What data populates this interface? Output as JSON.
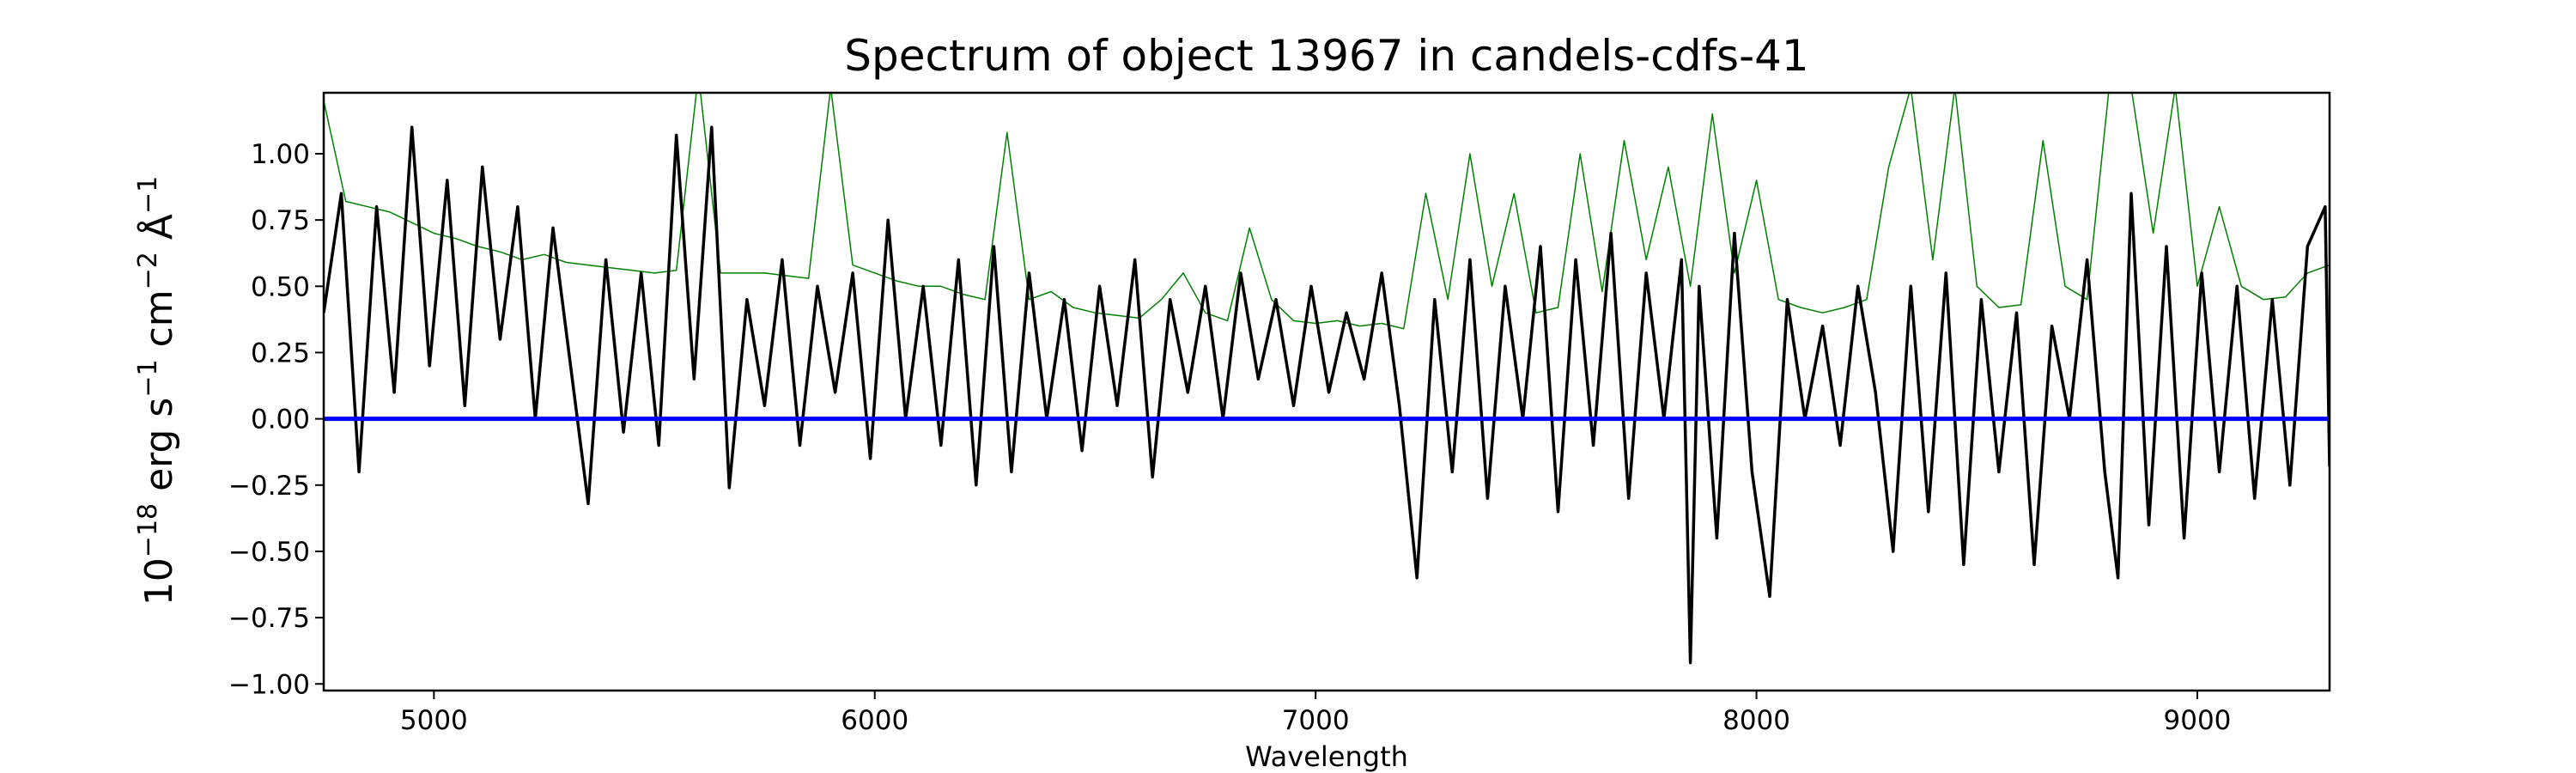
{
  "chart_data": {
    "type": "line",
    "title": "Spectrum of object 13967 in candels-cdfs-41",
    "xlabel": "Wavelength",
    "ylabel": {
      "base": "10",
      "exp1": "−18",
      "t1": " erg s",
      "exp2": "−1",
      "t2": " cm",
      "exp3": "−2",
      "t3": " Å",
      "exp4": "−1"
    },
    "xlim": [
      4750,
      9300
    ],
    "ylim": [
      -1.025,
      1.23
    ],
    "grid": false,
    "xticks": [
      "5000",
      "6000",
      "7000",
      "8000",
      "9000"
    ],
    "xtick_values": [
      5000,
      6000,
      7000,
      8000,
      9000
    ],
    "yticks": [
      "−1.00",
      "−0.75",
      "−0.50",
      "−0.25",
      "0.00",
      "0.25",
      "0.50",
      "0.75",
      "1.00"
    ],
    "ytick_values": [
      -1.0,
      -0.75,
      -0.5,
      -0.25,
      0.0,
      0.25,
      0.5,
      0.75,
      1.0
    ],
    "colors": {
      "flux": "#000000",
      "model": "#008000",
      "zero": "#0000ff"
    },
    "series": [
      {
        "role": "flux",
        "x": [
          4750,
          4790,
          4830,
          4870,
          4910,
          4950,
          4990,
          5030,
          5070,
          5110,
          5150,
          5190,
          5230,
          5270,
          5310,
          5350,
          5390,
          5430,
          5470,
          5510,
          5550,
          5590,
          5630,
          5670,
          5710,
          5750,
          5790,
          5830,
          5870,
          5910,
          5950,
          5990,
          6030,
          6070,
          6110,
          6150,
          6190,
          6230,
          6270,
          6310,
          6350,
          6390,
          6430,
          6470,
          6510,
          6550,
          6590,
          6630,
          6670,
          6710,
          6750,
          6790,
          6830,
          6870,
          6910,
          6950,
          6990,
          7030,
          7070,
          7110,
          7150,
          7190,
          7230,
          7270,
          7310,
          7350,
          7390,
          7430,
          7470,
          7510,
          7550,
          7590,
          7630,
          7670,
          7710,
          7750,
          7790,
          7830,
          7850,
          7870,
          7910,
          7950,
          7990,
          8030,
          8070,
          8110,
          8150,
          8190,
          8230,
          8270,
          8310,
          8350,
          8390,
          8430,
          8470,
          8510,
          8550,
          8590,
          8630,
          8670,
          8710,
          8750,
          8790,
          8820,
          8850,
          8890,
          8930,
          8970,
          9010,
          9050,
          9090,
          9130,
          9170,
          9210,
          9250,
          9290,
          9300
        ],
        "y": [
          0.4,
          0.85,
          -0.2,
          0.8,
          0.1,
          1.1,
          0.2,
          0.9,
          0.05,
          0.95,
          0.3,
          0.8,
          0.0,
          0.72,
          0.2,
          -0.32,
          0.6,
          -0.05,
          0.55,
          -0.1,
          1.07,
          0.15,
          1.1,
          -0.26,
          0.45,
          0.05,
          0.6,
          -0.1,
          0.5,
          0.1,
          0.55,
          -0.15,
          0.75,
          0.0,
          0.5,
          -0.1,
          0.6,
          -0.25,
          0.65,
          -0.2,
          0.55,
          0.0,
          0.45,
          -0.12,
          0.5,
          0.05,
          0.6,
          -0.22,
          0.45,
          0.1,
          0.5,
          0.0,
          0.55,
          0.15,
          0.45,
          0.05,
          0.5,
          0.1,
          0.4,
          0.15,
          0.55,
          0.05,
          -0.6,
          0.45,
          -0.2,
          0.6,
          -0.3,
          0.5,
          0.0,
          0.65,
          -0.35,
          0.6,
          -0.1,
          0.7,
          -0.3,
          0.55,
          0.0,
          0.6,
          -0.92,
          0.5,
          -0.45,
          0.7,
          -0.2,
          -0.67,
          0.45,
          0.0,
          0.35,
          -0.1,
          0.5,
          0.1,
          -0.5,
          0.5,
          -0.35,
          0.55,
          -0.55,
          0.45,
          -0.2,
          0.4,
          -0.55,
          0.35,
          0.0,
          0.6,
          -0.2,
          -0.6,
          0.85,
          -0.4,
          0.65,
          -0.45,
          0.55,
          -0.2,
          0.5,
          -0.3,
          0.45,
          -0.25,
          0.65,
          0.8,
          -0.18
        ]
      },
      {
        "role": "model",
        "x": [
          4750,
          4800,
          4850,
          4900,
          4950,
          5000,
          5050,
          5100,
          5150,
          5200,
          5250,
          5300,
          5350,
          5400,
          5450,
          5500,
          5550,
          5600,
          5650,
          5700,
          5750,
          5800,
          5850,
          5900,
          5950,
          6000,
          6050,
          6100,
          6150,
          6200,
          6250,
          6300,
          6350,
          6400,
          6450,
          6500,
          6550,
          6600,
          6650,
          6700,
          6750,
          6800,
          6850,
          6900,
          6950,
          7000,
          7050,
          7100,
          7150,
          7200,
          7250,
          7300,
          7350,
          7400,
          7450,
          7500,
          7550,
          7600,
          7650,
          7700,
          7750,
          7800,
          7850,
          7900,
          7950,
          8000,
          8050,
          8100,
          8150,
          8200,
          8250,
          8300,
          8350,
          8400,
          8450,
          8500,
          8550,
          8600,
          8650,
          8700,
          8750,
          8800,
          8850,
          8900,
          8950,
          9000,
          9050,
          9100,
          9150,
          9200,
          9250,
          9300
        ],
        "y": [
          1.2,
          0.82,
          0.8,
          0.78,
          0.74,
          0.7,
          0.68,
          0.65,
          0.63,
          0.6,
          0.62,
          0.59,
          0.58,
          0.57,
          0.56,
          0.55,
          0.56,
          1.3,
          0.55,
          0.55,
          0.55,
          0.54,
          0.53,
          1.25,
          0.58,
          0.55,
          0.52,
          0.5,
          0.5,
          0.47,
          0.45,
          1.08,
          0.45,
          0.48,
          0.42,
          0.4,
          0.39,
          0.38,
          0.45,
          0.55,
          0.4,
          0.37,
          0.72,
          0.45,
          0.37,
          0.36,
          0.37,
          0.35,
          0.36,
          0.34,
          0.85,
          0.45,
          1.0,
          0.5,
          0.85,
          0.4,
          0.42,
          1.0,
          0.48,
          1.05,
          0.6,
          0.95,
          0.5,
          1.15,
          0.55,
          0.9,
          0.45,
          0.42,
          0.4,
          0.42,
          0.45,
          0.95,
          1.25,
          0.6,
          1.25,
          0.5,
          0.42,
          0.43,
          1.05,
          0.5,
          0.45,
          1.25,
          1.25,
          0.7,
          1.25,
          0.5,
          0.8,
          0.5,
          0.45,
          0.46,
          0.55,
          0.58
        ]
      },
      {
        "role": "zero",
        "x": [
          4750,
          9300
        ],
        "y": [
          0,
          0
        ]
      }
    ]
  }
}
